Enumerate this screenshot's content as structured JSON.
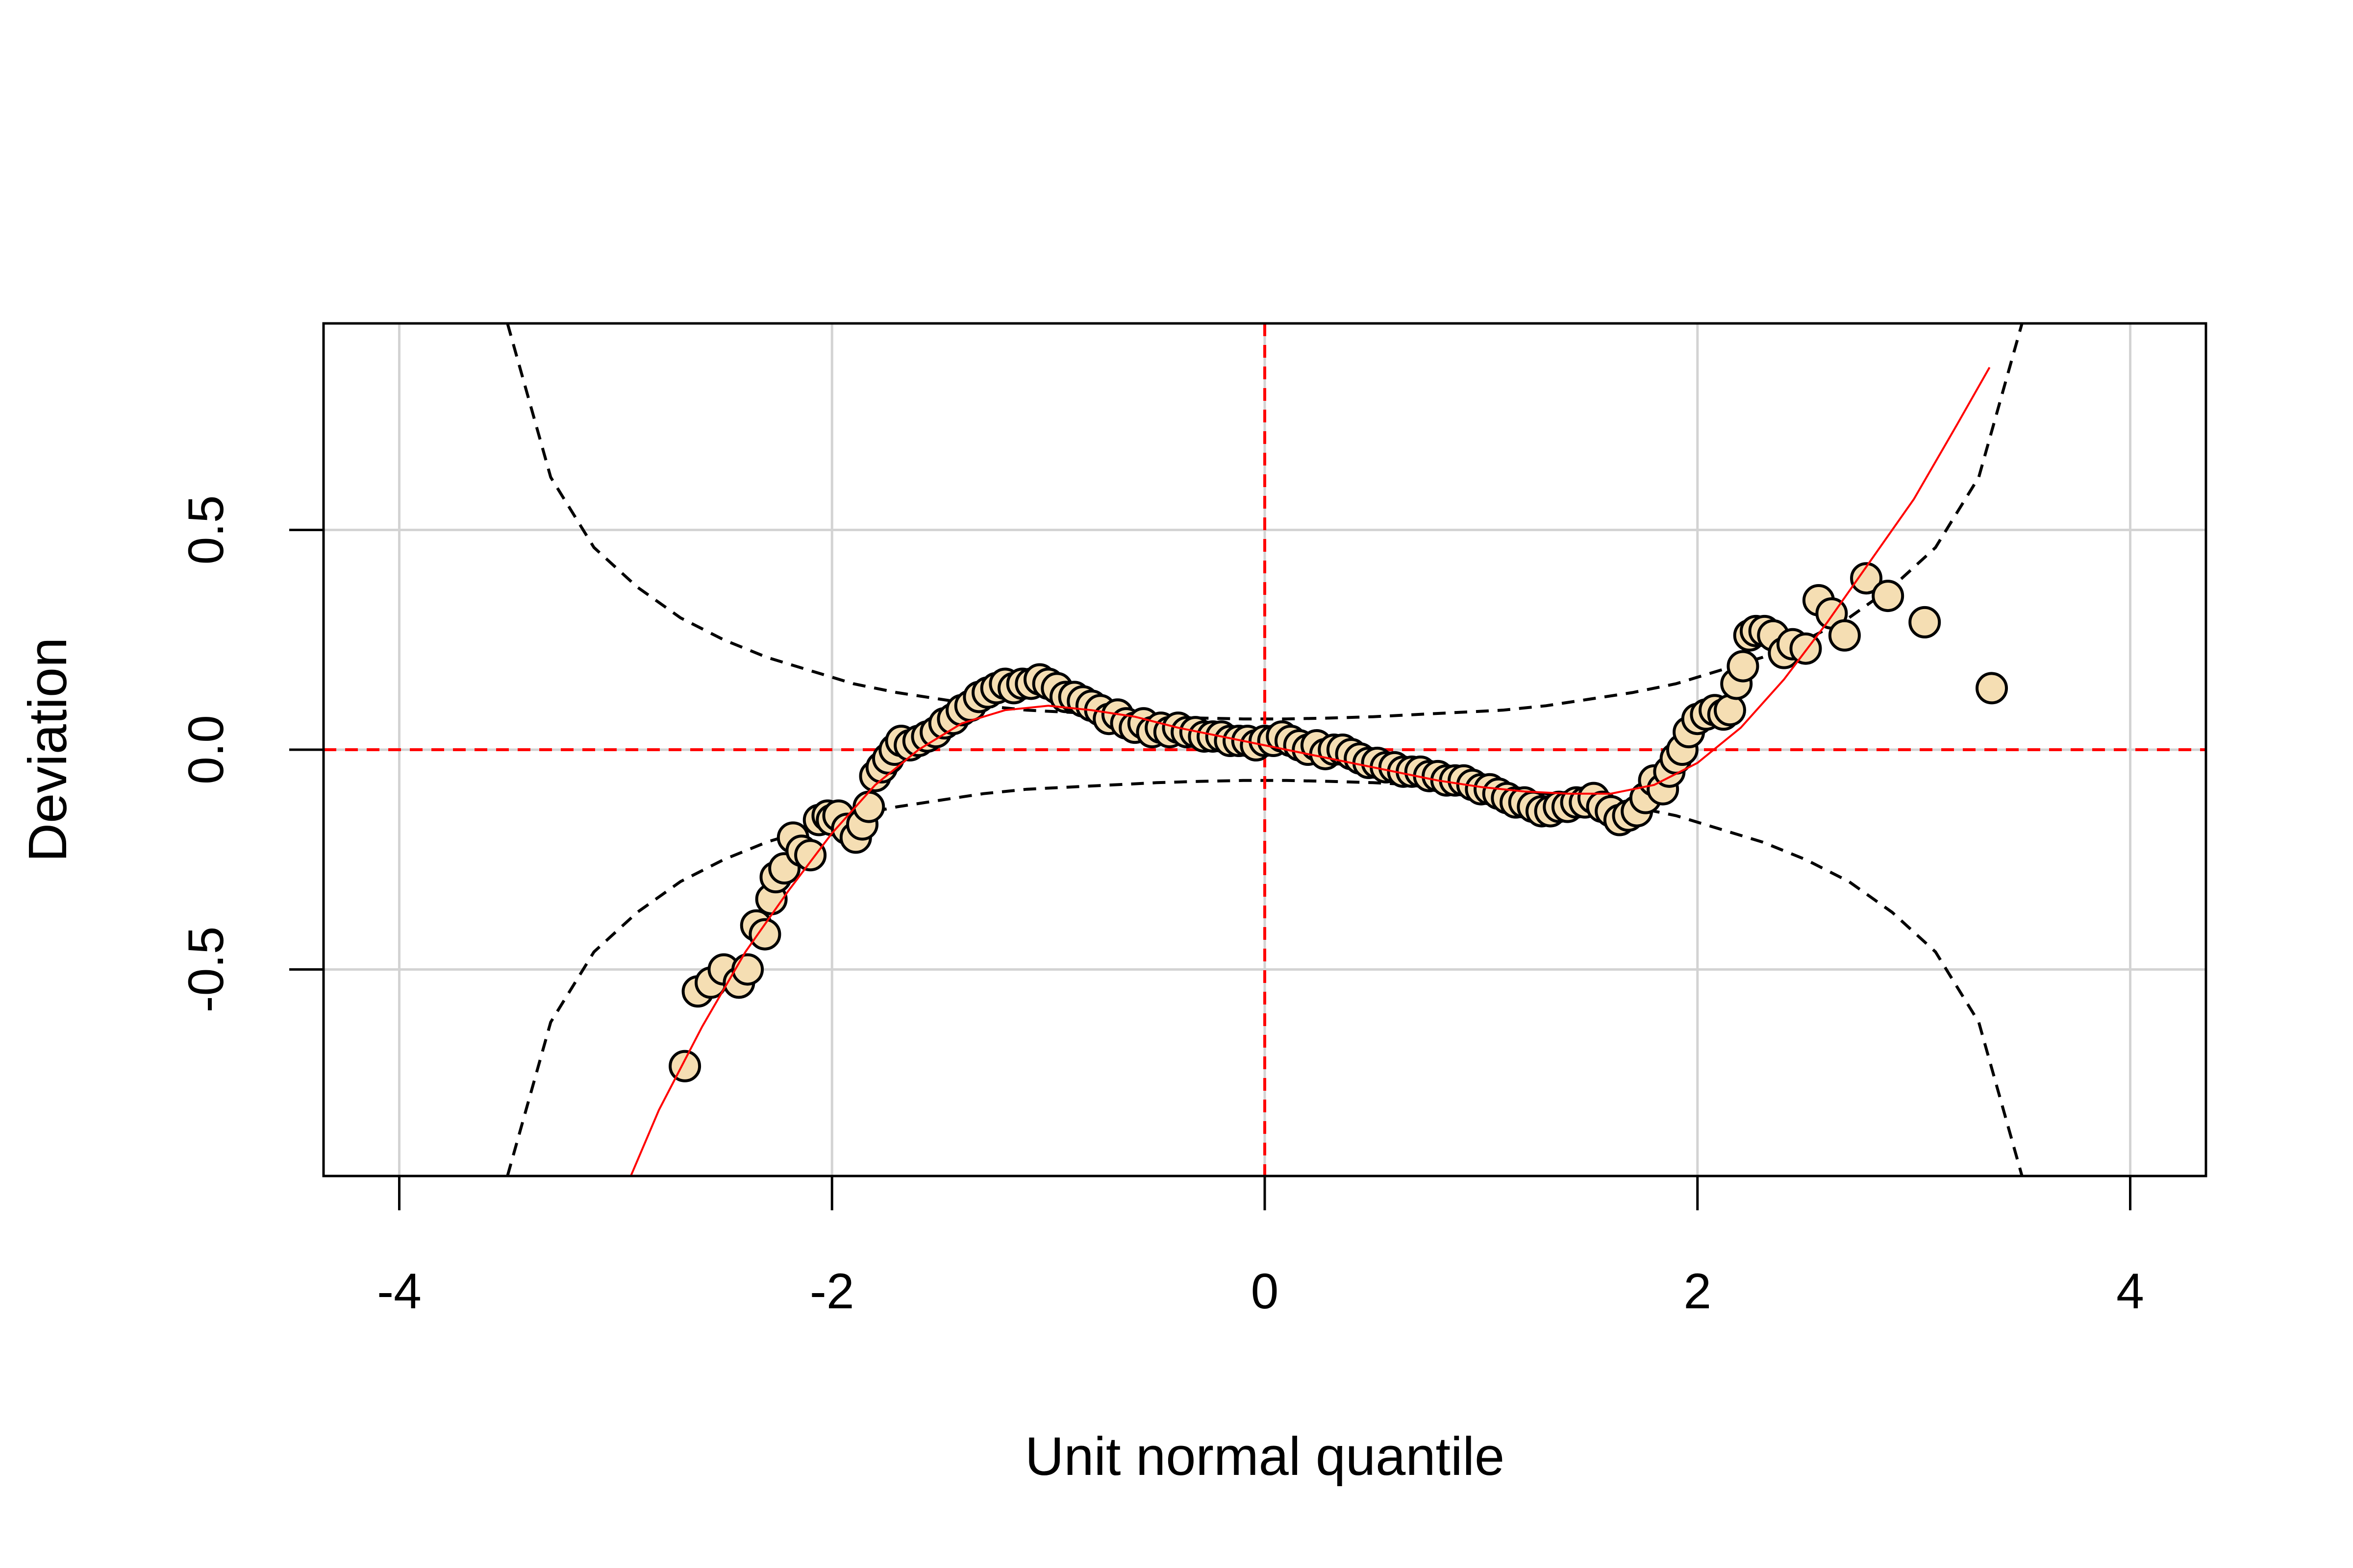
{
  "chart_data": {
    "type": "scatter",
    "title": "",
    "xlabel": "Unit normal quantile",
    "ylabel": "Deviation",
    "xlim": [
      -4.35,
      4.35
    ],
    "ylim": [
      -0.97,
      0.97
    ],
    "xticks": [
      -4,
      -2,
      0,
      2,
      4
    ],
    "xtick_labels": [
      "-4",
      "-2",
      "0",
      "2",
      "4"
    ],
    "yticks": [
      -0.5,
      0.0,
      0.5
    ],
    "ytick_labels": [
      "-0.5",
      "0.0",
      "0.5"
    ],
    "grid": true,
    "reference_lines": {
      "x": 0,
      "y": 0,
      "color": "#ff0000",
      "style": "dashed"
    },
    "confidence_band": {
      "x": [
        -3.5,
        -3.3,
        -3.1,
        -2.9,
        -2.7,
        -2.5,
        -2.3,
        -2.1,
        -1.9,
        -1.7,
        -1.5,
        -1.3,
        -1.1,
        -0.9,
        -0.7,
        -0.5,
        -0.3,
        -0.1,
        0.1,
        0.3,
        0.5,
        0.7,
        0.9,
        1.1,
        1.3,
        1.5,
        1.7,
        1.9,
        2.1,
        2.3,
        2.5,
        2.7,
        2.9,
        3.1,
        3.3,
        3.5
      ],
      "upper": [
        0.97,
        0.62,
        0.46,
        0.37,
        0.3,
        0.25,
        0.21,
        0.18,
        0.15,
        0.13,
        0.115,
        0.1,
        0.09,
        0.085,
        0.08,
        0.075,
        0.072,
        0.07,
        0.07,
        0.072,
        0.075,
        0.08,
        0.085,
        0.09,
        0.1,
        0.115,
        0.13,
        0.15,
        0.18,
        0.21,
        0.25,
        0.3,
        0.37,
        0.46,
        0.62,
        0.97
      ],
      "lower": [
        -0.97,
        -0.62,
        -0.46,
        -0.37,
        -0.3,
        -0.25,
        -0.21,
        -0.18,
        -0.15,
        -0.13,
        -0.115,
        -0.1,
        -0.09,
        -0.085,
        -0.08,
        -0.075,
        -0.072,
        -0.07,
        -0.07,
        -0.072,
        -0.075,
        -0.08,
        -0.085,
        -0.09,
        -0.1,
        -0.115,
        -0.13,
        -0.15,
        -0.18,
        -0.21,
        -0.25,
        -0.3,
        -0.37,
        -0.46,
        -0.62,
        -0.97
      ],
      "color": "#000000",
      "style": "dashed"
    },
    "fit_curve": {
      "x": [
        -2.93,
        -2.8,
        -2.6,
        -2.4,
        -2.2,
        -2.0,
        -1.8,
        -1.6,
        -1.4,
        -1.2,
        -1.0,
        -0.8,
        -0.6,
        -0.4,
        -0.2,
        0.0,
        0.2,
        0.4,
        0.6,
        0.8,
        1.0,
        1.2,
        1.4,
        1.6,
        1.8,
        2.0,
        2.2,
        2.4,
        2.6,
        2.8,
        3.0,
        3.2,
        3.35
      ],
      "y": [
        -0.97,
        -0.82,
        -0.63,
        -0.46,
        -0.32,
        -0.19,
        -0.08,
        0.0,
        0.06,
        0.09,
        0.1,
        0.09,
        0.075,
        0.05,
        0.03,
        0.01,
        -0.01,
        -0.03,
        -0.05,
        -0.07,
        -0.085,
        -0.095,
        -0.1,
        -0.1,
        -0.08,
        -0.03,
        0.05,
        0.16,
        0.29,
        0.43,
        0.57,
        0.74,
        0.87
      ],
      "color": "#ff0000"
    },
    "points": {
      "marker_fill": "#f5deb3",
      "marker_edge": "#000000",
      "x": [
        -2.68,
        -2.62,
        -2.56,
        -2.5,
        -2.43,
        -2.39,
        -2.35,
        -2.31,
        -2.28,
        -2.26,
        -2.22,
        -2.18,
        -2.14,
        -2.1,
        -2.06,
        -2.02,
        -2.0,
        -1.97,
        -1.93,
        -1.89,
        -1.86,
        -1.83,
        -1.8,
        -1.77,
        -1.74,
        -1.71,
        -1.68,
        -1.64,
        -1.6,
        -1.56,
        -1.52,
        -1.48,
        -1.44,
        -1.4,
        -1.36,
        -1.32,
        -1.28,
        -1.24,
        -1.2,
        -1.16,
        -1.12,
        -1.08,
        -1.04,
        -1.0,
        -0.96,
        -0.92,
        -0.88,
        -0.84,
        -0.8,
        -0.76,
        -0.72,
        -0.68,
        -0.64,
        -0.6,
        -0.56,
        -0.52,
        -0.48,
        -0.44,
        -0.4,
        -0.36,
        -0.32,
        -0.28,
        -0.24,
        -0.2,
        -0.16,
        -0.12,
        -0.08,
        -0.04,
        0.0,
        0.04,
        0.08,
        0.12,
        0.16,
        0.2,
        0.24,
        0.28,
        0.32,
        0.36,
        0.4,
        0.44,
        0.48,
        0.52,
        0.56,
        0.6,
        0.64,
        0.68,
        0.72,
        0.76,
        0.8,
        0.84,
        0.88,
        0.92,
        0.96,
        1.0,
        1.04,
        1.08,
        1.12,
        1.16,
        1.2,
        1.24,
        1.28,
        1.32,
        1.36,
        1.4,
        1.44,
        1.48,
        1.52,
        1.56,
        1.6,
        1.64,
        1.68,
        1.72,
        1.76,
        1.8,
        1.84,
        1.87,
        1.9,
        1.93,
        1.96,
        2.0,
        2.04,
        2.08,
        2.12,
        2.15,
        2.18,
        2.21,
        2.24,
        2.27,
        2.31,
        2.35,
        2.4,
        2.44,
        2.5,
        2.56,
        2.62,
        2.68,
        2.78,
        2.88,
        3.05,
        3.36
      ],
      "y": [
        -0.72,
        -0.55,
        -0.53,
        -0.5,
        -0.53,
        -0.5,
        -0.4,
        -0.42,
        -0.34,
        -0.29,
        -0.27,
        -0.2,
        -0.23,
        -0.24,
        -0.16,
        -0.15,
        -0.16,
        -0.15,
        -0.18,
        -0.2,
        -0.17,
        -0.13,
        -0.06,
        -0.04,
        -0.02,
        0.0,
        0.02,
        0.01,
        0.02,
        0.03,
        0.04,
        0.06,
        0.07,
        0.09,
        0.1,
        0.12,
        0.13,
        0.14,
        0.15,
        0.14,
        0.15,
        0.15,
        0.16,
        0.15,
        0.14,
        0.12,
        0.12,
        0.11,
        0.1,
        0.09,
        0.07,
        0.08,
        0.06,
        0.05,
        0.06,
        0.04,
        0.05,
        0.04,
        0.05,
        0.04,
        0.04,
        0.03,
        0.03,
        0.03,
        0.02,
        0.02,
        0.02,
        0.01,
        0.02,
        0.02,
        0.03,
        0.02,
        0.01,
        0.0,
        0.01,
        -0.01,
        0.0,
        0.0,
        -0.01,
        -0.02,
        -0.03,
        -0.03,
        -0.04,
        -0.04,
        -0.05,
        -0.05,
        -0.05,
        -0.06,
        -0.06,
        -0.07,
        -0.07,
        -0.07,
        -0.08,
        -0.09,
        -0.09,
        -0.1,
        -0.11,
        -0.12,
        -0.12,
        -0.13,
        -0.14,
        -0.14,
        -0.13,
        -0.13,
        -0.12,
        -0.12,
        -0.11,
        -0.13,
        -0.14,
        -0.16,
        -0.15,
        -0.14,
        -0.11,
        -0.07,
        -0.09,
        -0.05,
        -0.02,
        0.0,
        0.04,
        0.07,
        0.08,
        0.09,
        0.08,
        0.09,
        0.15,
        0.19,
        0.26,
        0.27,
        0.27,
        0.26,
        0.22,
        0.24,
        0.23,
        0.34,
        0.31,
        0.26,
        0.39,
        0.35,
        0.29,
        0.14
      ]
    }
  }
}
